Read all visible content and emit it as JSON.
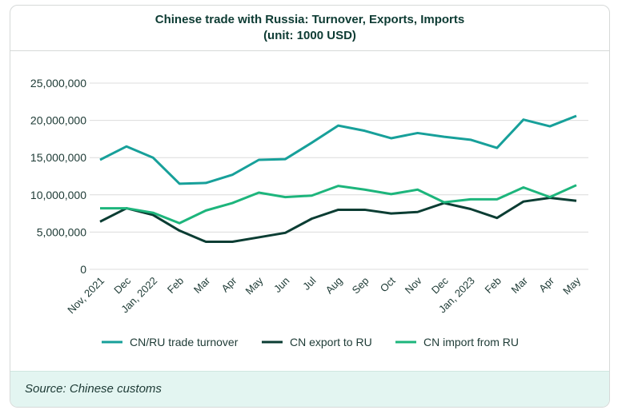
{
  "chart_data": {
    "type": "line",
    "title": "Chinese trade with Russia: Turnover, Exports, Imports",
    "subtitle": "(unit: 1000 USD)",
    "categories": [
      "Nov, 2021",
      "Dec",
      "Jan, 2022",
      "Feb",
      "Mar",
      "Apr",
      "May",
      "Jun",
      "Jul",
      "Aug",
      "Sep",
      "Oct",
      "Nov",
      "Dec",
      "Jan, 2023",
      "Feb",
      "Mar",
      "Apr",
      "May"
    ],
    "yticks": [
      "0",
      "5,000,000",
      "10,000,000",
      "15,000,000",
      "20,000,000",
      "25,000,000"
    ],
    "ylim": [
      0,
      25000000
    ],
    "grid": true,
    "legend_position": "bottom",
    "series": [
      {
        "name": "CN/RU trade turnover",
        "color": "#17a09a",
        "values": [
          14700000,
          16500000,
          15000000,
          11500000,
          11600000,
          12700000,
          14700000,
          14800000,
          17000000,
          19300000,
          18600000,
          17600000,
          18300000,
          17800000,
          17400000,
          16300000,
          20100000,
          19200000,
          20600000
        ]
      },
      {
        "name": "CN export to RU",
        "color": "#0b3d33",
        "values": [
          6400000,
          8200000,
          7300000,
          5200000,
          3700000,
          3700000,
          4300000,
          4900000,
          6800000,
          8000000,
          8000000,
          7500000,
          7700000,
          8900000,
          8100000,
          6900000,
          9100000,
          9600000,
          9200000
        ]
      },
      {
        "name": "CN import from RU",
        "color": "#1db57c",
        "values": [
          8200000,
          8200000,
          7600000,
          6200000,
          7900000,
          8900000,
          10300000,
          9700000,
          9900000,
          11200000,
          10700000,
          10100000,
          10700000,
          9000000,
          9400000,
          9400000,
          11000000,
          9700000,
          11300000
        ]
      }
    ]
  },
  "source": "Source: Chinese customs"
}
